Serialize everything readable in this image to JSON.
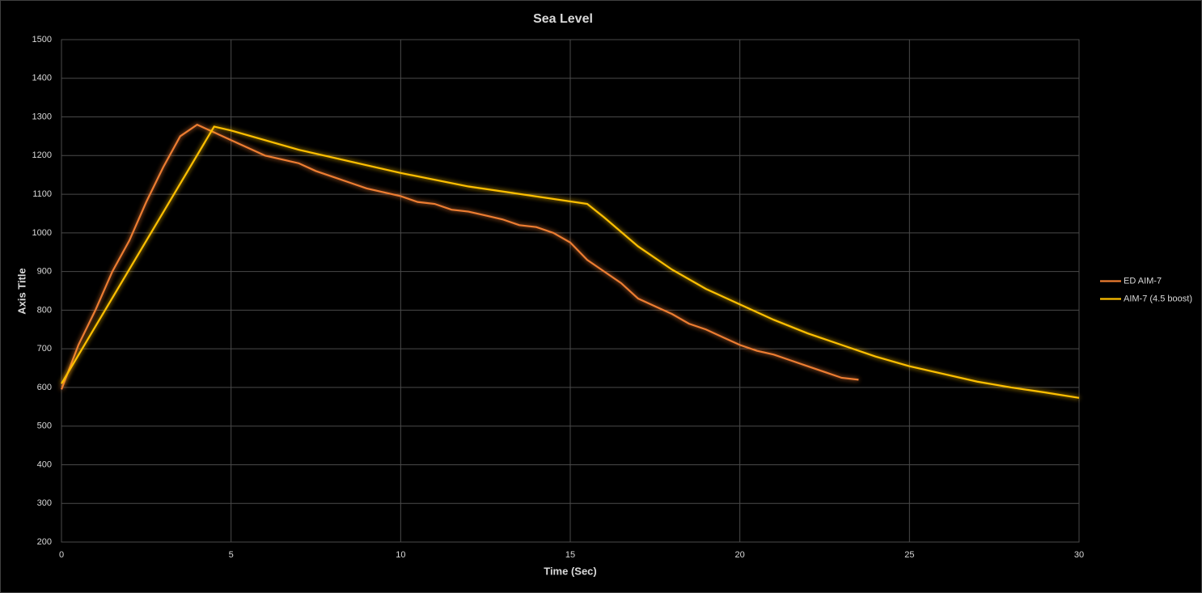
{
  "chart_data": {
    "type": "line",
    "title": "Sea Level",
    "x_label": "Time (Sec)",
    "y_label": "Axis Title",
    "xlim": [
      0,
      30
    ],
    "xticks": [
      0,
      5,
      10,
      15,
      20,
      25,
      30
    ],
    "ylim": [
      200,
      1500
    ],
    "yticks": [
      200,
      300,
      400,
      500,
      600,
      700,
      800,
      900,
      1000,
      1100,
      1200,
      1300,
      1400,
      1500
    ],
    "grid": true,
    "legend": "right",
    "series": [
      {
        "name": "ED AIM-7",
        "color": "#ed7d31",
        "x": [
          0,
          0.5,
          1,
          1.5,
          2,
          2.5,
          3,
          3.5,
          4,
          4.5,
          5,
          5.5,
          6,
          6.5,
          7,
          7.5,
          8,
          8.5,
          9,
          9.5,
          10,
          10.5,
          11,
          11.5,
          12,
          12.5,
          13,
          13.5,
          14,
          14.5,
          15,
          15.5,
          16,
          16.5,
          17,
          17.5,
          18,
          18.5,
          19,
          19.5,
          20,
          20.5,
          21,
          21.5,
          22,
          22.5,
          23,
          23.5
        ],
        "values": [
          595,
          710,
          800,
          900,
          980,
          1080,
          1170,
          1250,
          1280,
          1260,
          1240,
          1220,
          1200,
          1190,
          1180,
          1160,
          1145,
          1130,
          1115,
          1105,
          1095,
          1080,
          1075,
          1060,
          1055,
          1045,
          1035,
          1020,
          1015,
          1000,
          975,
          930,
          900,
          870,
          830,
          810,
          790,
          765,
          750,
          730,
          710,
          695,
          685,
          670,
          655,
          640,
          625,
          620
        ]
      },
      {
        "name": "AIM-7 (4.5 boost)",
        "color": "#ffc000",
        "x": [
          0,
          4.5,
          5,
          7,
          10,
          12,
          15.5,
          16,
          17,
          18,
          19,
          20,
          21,
          22,
          23,
          24,
          25,
          26,
          27,
          28,
          29,
          30
        ],
        "values": [
          610,
          1275,
          1265,
          1215,
          1155,
          1120,
          1075,
          1040,
          965,
          905,
          855,
          815,
          775,
          740,
          710,
          680,
          655,
          635,
          615,
          600,
          587,
          573
        ]
      }
    ]
  }
}
